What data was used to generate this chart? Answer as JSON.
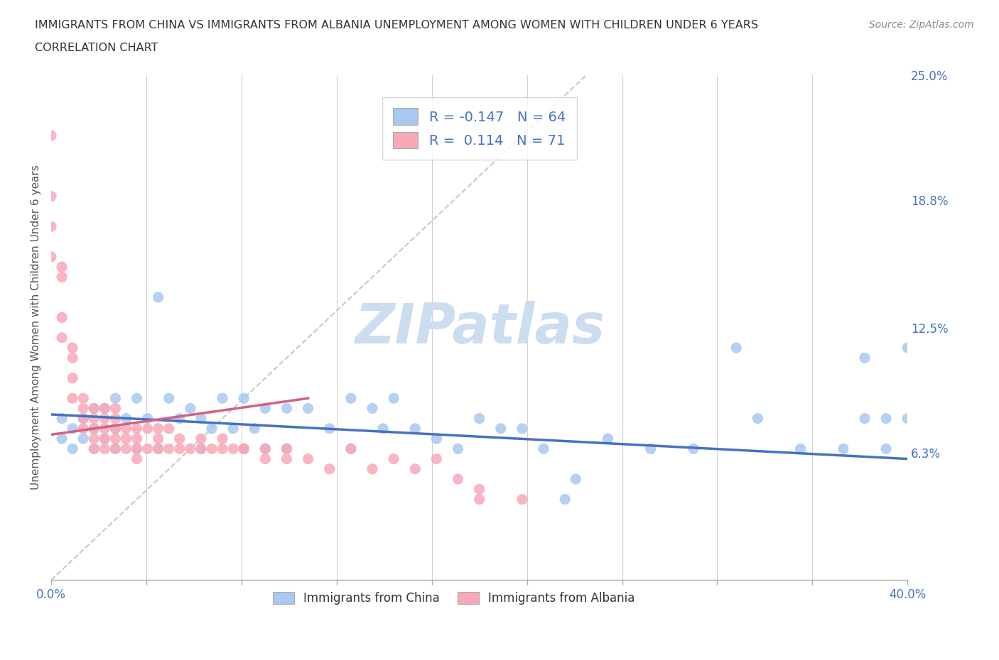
{
  "title_line1": "IMMIGRANTS FROM CHINA VS IMMIGRANTS FROM ALBANIA UNEMPLOYMENT AMONG WOMEN WITH CHILDREN UNDER 6 YEARS",
  "title_line2": "CORRELATION CHART",
  "source": "Source: ZipAtlas.com",
  "ylabel": "Unemployment Among Women with Children Under 6 years",
  "xlim": [
    0.0,
    0.4
  ],
  "ylim": [
    0.0,
    0.25
  ],
  "xtick_labels": [
    "0.0%",
    "",
    "",
    "",
    "",
    "",
    "",
    "",
    "",
    "40.0%"
  ],
  "ytick_labels_right": [
    "6.3%",
    "12.5%",
    "18.8%",
    "25.0%"
  ],
  "ytick_values_right": [
    0.063,
    0.125,
    0.188,
    0.25
  ],
  "china_color": "#a8c8f0",
  "albania_color": "#f8a8b8",
  "china_line_color": "#4472c4",
  "albania_line_color": "#d46080",
  "ref_line_color": "#c8c8c8",
  "legend_R_china": "-0.147",
  "legend_N_china": "64",
  "legend_R_albania": "0.114",
  "legend_N_albania": "71",
  "legend_text_color": "#4472c4",
  "watermark": "ZIPatlas",
  "watermark_color": "#ccddf0",
  "china_x": [
    0.005,
    0.005,
    0.01,
    0.01,
    0.015,
    0.015,
    0.02,
    0.02,
    0.02,
    0.025,
    0.025,
    0.03,
    0.03,
    0.03,
    0.035,
    0.04,
    0.04,
    0.045,
    0.05,
    0.05,
    0.055,
    0.06,
    0.065,
    0.07,
    0.07,
    0.075,
    0.08,
    0.085,
    0.09,
    0.09,
    0.095,
    0.1,
    0.1,
    0.11,
    0.11,
    0.12,
    0.13,
    0.14,
    0.14,
    0.15,
    0.155,
    0.16,
    0.17,
    0.18,
    0.19,
    0.2,
    0.21,
    0.22,
    0.23,
    0.24,
    0.245,
    0.26,
    0.28,
    0.3,
    0.32,
    0.33,
    0.35,
    0.37,
    0.38,
    0.38,
    0.39,
    0.39,
    0.4,
    0.4
  ],
  "china_y": [
    0.08,
    0.07,
    0.075,
    0.065,
    0.08,
    0.07,
    0.085,
    0.075,
    0.065,
    0.085,
    0.07,
    0.09,
    0.075,
    0.065,
    0.08,
    0.09,
    0.065,
    0.08,
    0.14,
    0.065,
    0.09,
    0.08,
    0.085,
    0.08,
    0.065,
    0.075,
    0.09,
    0.075,
    0.09,
    0.065,
    0.075,
    0.085,
    0.065,
    0.085,
    0.065,
    0.085,
    0.075,
    0.09,
    0.065,
    0.085,
    0.075,
    0.09,
    0.075,
    0.07,
    0.065,
    0.08,
    0.075,
    0.075,
    0.065,
    0.04,
    0.05,
    0.07,
    0.065,
    0.065,
    0.115,
    0.08,
    0.065,
    0.065,
    0.11,
    0.08,
    0.065,
    0.08,
    0.115,
    0.08
  ],
  "albania_x": [
    0.0,
    0.0,
    0.0,
    0.0,
    0.005,
    0.005,
    0.005,
    0.005,
    0.01,
    0.01,
    0.01,
    0.01,
    0.015,
    0.015,
    0.015,
    0.015,
    0.02,
    0.02,
    0.02,
    0.02,
    0.02,
    0.025,
    0.025,
    0.025,
    0.025,
    0.025,
    0.03,
    0.03,
    0.03,
    0.03,
    0.03,
    0.035,
    0.035,
    0.035,
    0.04,
    0.04,
    0.04,
    0.04,
    0.045,
    0.045,
    0.05,
    0.05,
    0.05,
    0.055,
    0.055,
    0.06,
    0.06,
    0.065,
    0.07,
    0.07,
    0.075,
    0.08,
    0.08,
    0.085,
    0.09,
    0.09,
    0.1,
    0.1,
    0.11,
    0.11,
    0.12,
    0.13,
    0.14,
    0.15,
    0.16,
    0.17,
    0.18,
    0.19,
    0.2,
    0.2,
    0.22
  ],
  "albania_y": [
    0.22,
    0.19,
    0.175,
    0.16,
    0.155,
    0.15,
    0.13,
    0.12,
    0.115,
    0.11,
    0.1,
    0.09,
    0.09,
    0.085,
    0.08,
    0.075,
    0.085,
    0.08,
    0.075,
    0.07,
    0.065,
    0.085,
    0.08,
    0.075,
    0.07,
    0.065,
    0.085,
    0.08,
    0.075,
    0.07,
    0.065,
    0.075,
    0.07,
    0.065,
    0.075,
    0.07,
    0.065,
    0.06,
    0.075,
    0.065,
    0.075,
    0.07,
    0.065,
    0.075,
    0.065,
    0.07,
    0.065,
    0.065,
    0.07,
    0.065,
    0.065,
    0.07,
    0.065,
    0.065,
    0.065,
    0.065,
    0.065,
    0.06,
    0.065,
    0.06,
    0.06,
    0.055,
    0.065,
    0.055,
    0.06,
    0.055,
    0.06,
    0.05,
    0.045,
    0.04,
    0.04
  ],
  "china_trend_x": [
    0.0,
    0.4
  ],
  "china_trend_y": [
    0.082,
    0.06
  ],
  "albania_trend_x": [
    0.0,
    0.12
  ],
  "albania_trend_y": [
    0.072,
    0.09
  ]
}
